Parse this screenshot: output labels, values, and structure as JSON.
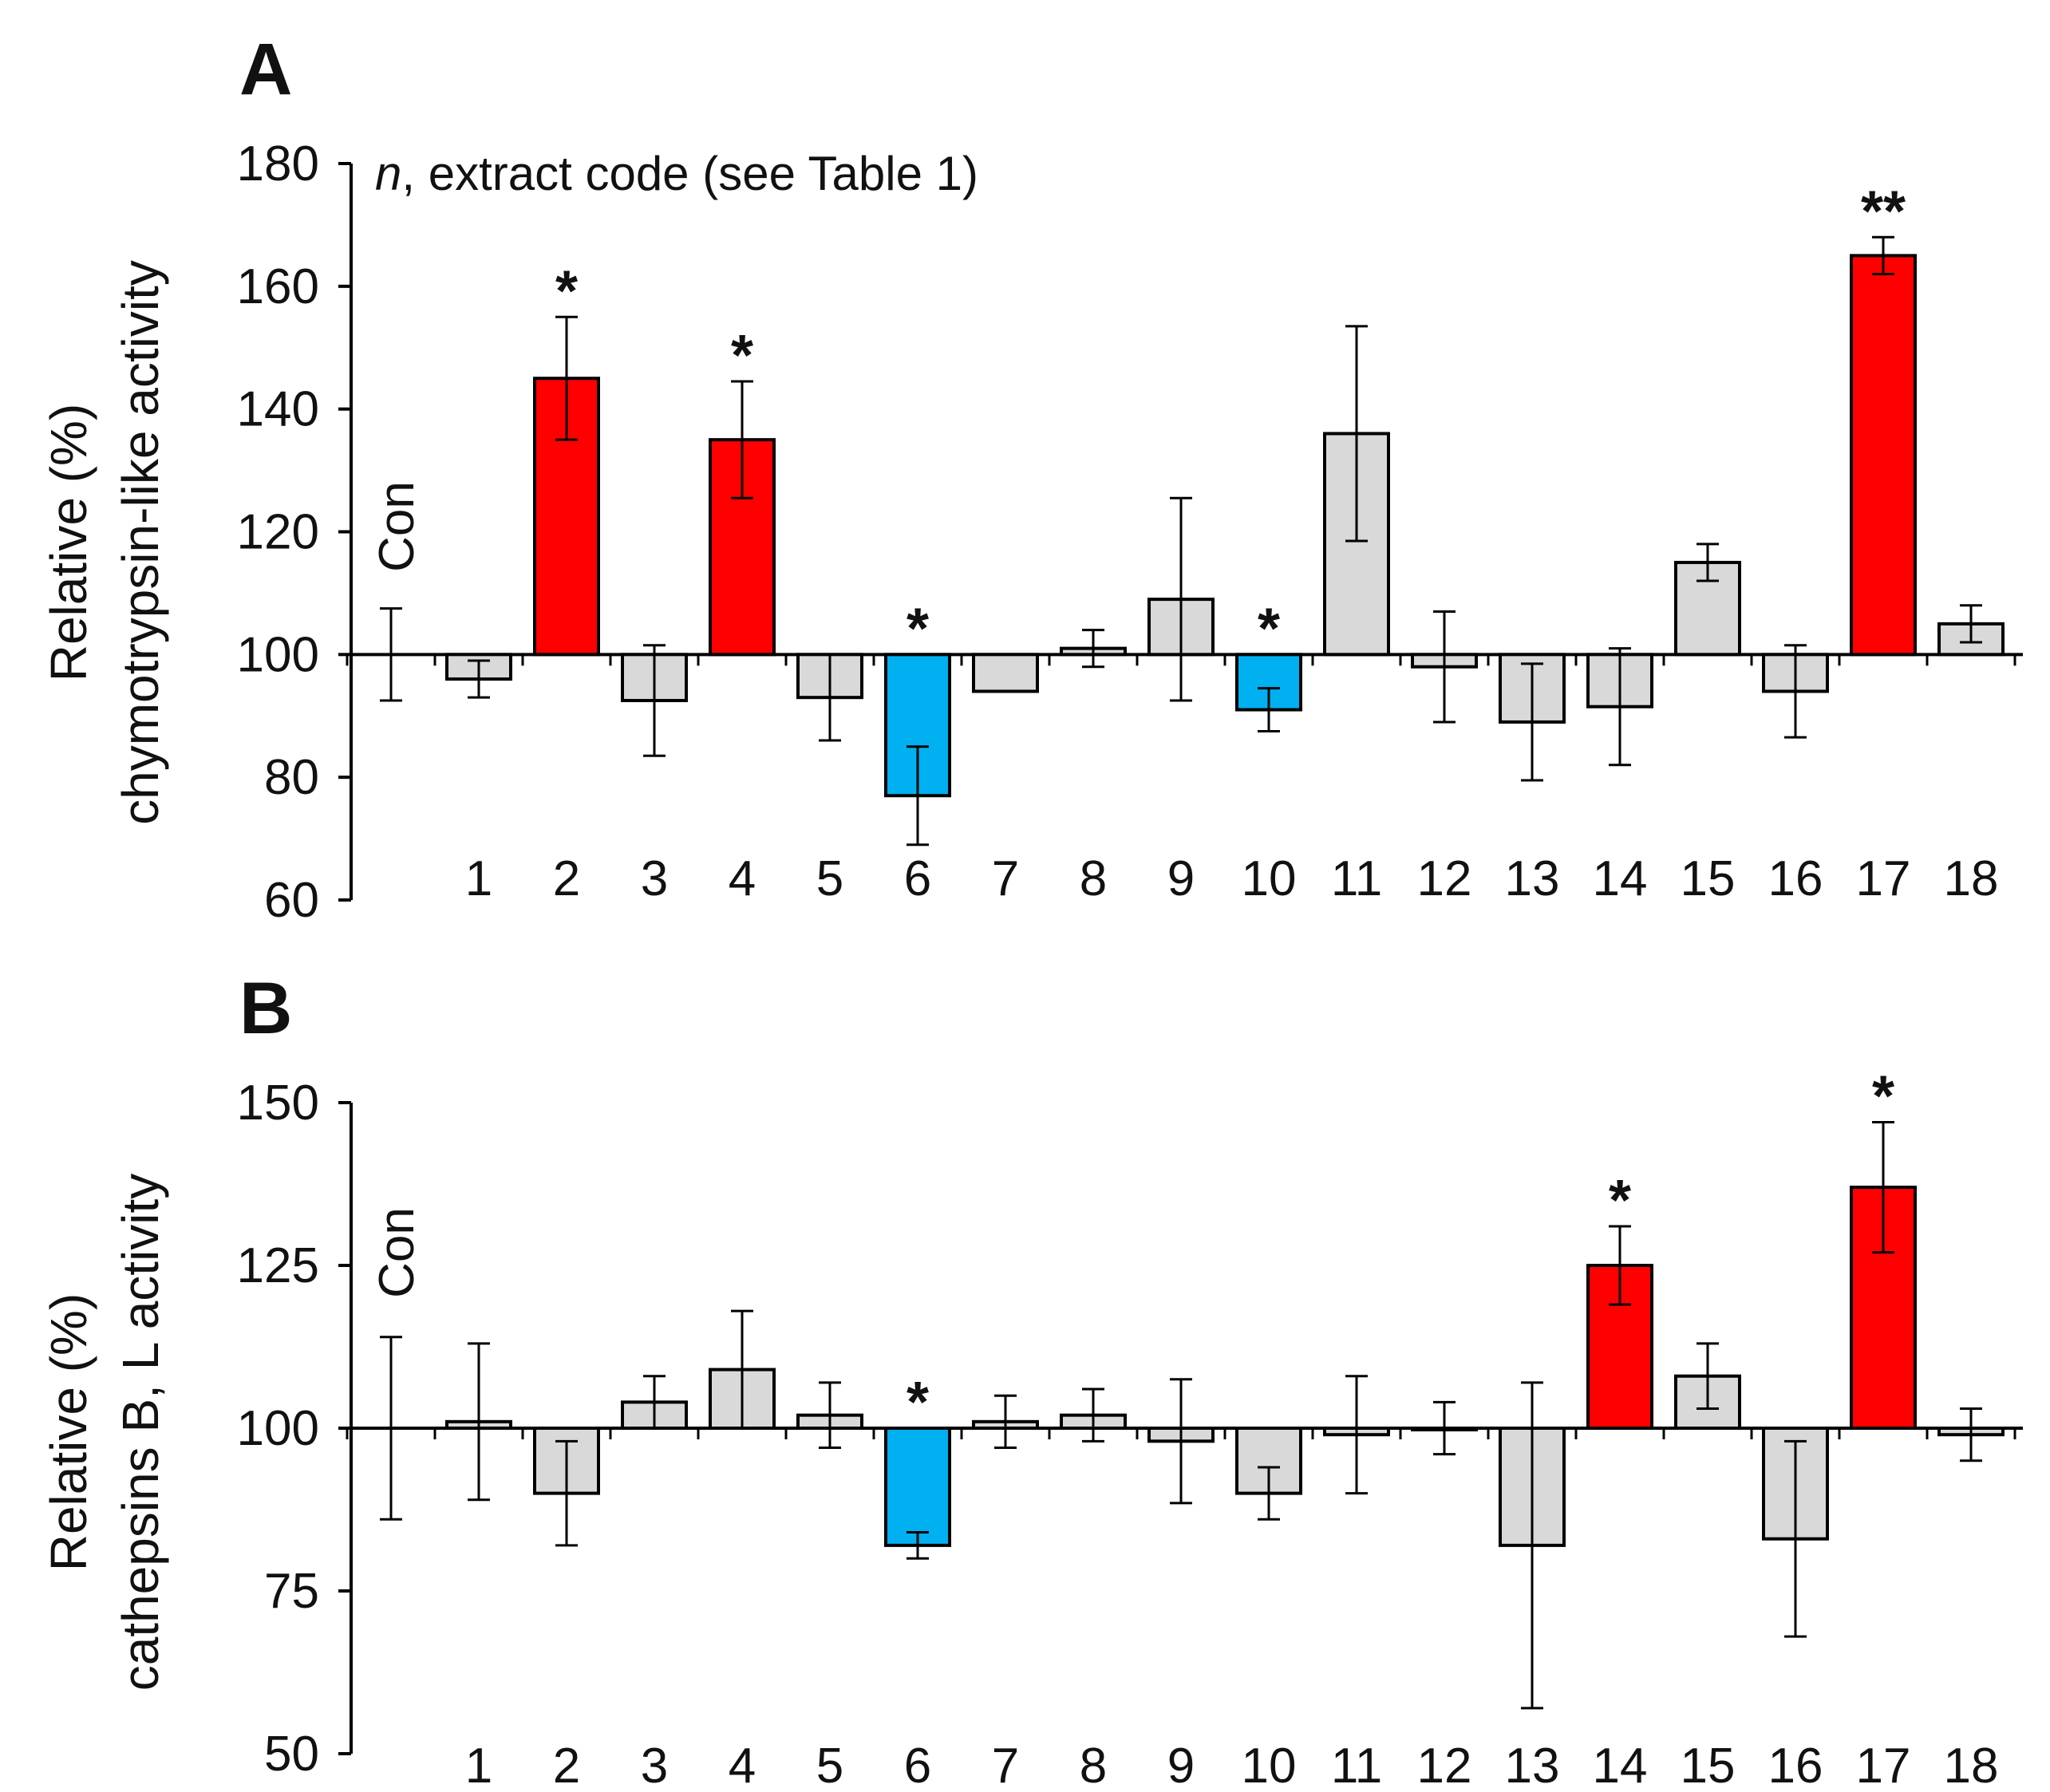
{
  "figure": {
    "panels": [
      {
        "letter": "A",
        "ylabel_line1": "Relative (%)",
        "ylabel_line2": "chymotrypsin-like activity",
        "note_italic": "n",
        "note_rest": ", extract code (see Table 1)",
        "control_label": "Con"
      },
      {
        "letter": "B",
        "ylabel_line1": "Relative (%)",
        "ylabel_line2": "cathepsins B, L activity",
        "control_label": "Con"
      }
    ]
  },
  "colors": {
    "neutral": "#d9d9d9",
    "increase": "#ff0000",
    "decrease": "#00b0f0",
    "outline": "#000000"
  },
  "chart_data": [
    {
      "type": "bar",
      "panel": "A",
      "ylabel": "Relative (%) chymotrypsin-like activity",
      "ylim": [
        60,
        180
      ],
      "yticks": [
        60,
        80,
        100,
        120,
        140,
        160,
        180
      ],
      "baseline": 100,
      "control": {
        "label": "Con",
        "value": 100,
        "error": 7.5
      },
      "categories": [
        "1",
        "2",
        "3",
        "4",
        "5",
        "6",
        "7",
        "8",
        "9",
        "10",
        "11",
        "12",
        "13",
        "14",
        "15",
        "16",
        "17",
        "18"
      ],
      "values": [
        96,
        145,
        92.5,
        135,
        93,
        77,
        94,
        101,
        109,
        91,
        136,
        98,
        89,
        91.5,
        115,
        94,
        165,
        105
      ],
      "errors": [
        3,
        10,
        9,
        9.5,
        7,
        8,
        0,
        3,
        16.5,
        3.5,
        17.5,
        9,
        9.5,
        9.5,
        3,
        7.5,
        3,
        3
      ],
      "colors": [
        "neutral",
        "increase",
        "neutral",
        "increase",
        "neutral",
        "decrease",
        "neutral",
        "neutral",
        "neutral",
        "decrease",
        "neutral",
        "neutral",
        "neutral",
        "neutral",
        "neutral",
        "neutral",
        "increase",
        "neutral"
      ],
      "significance": [
        "",
        "*",
        "",
        "*",
        "",
        "*",
        "",
        "",
        "",
        "*",
        "",
        "",
        "",
        "",
        "",
        "",
        "**",
        ""
      ]
    },
    {
      "type": "bar",
      "panel": "B",
      "ylabel": "Relative (%) cathepsins B, L activity",
      "ylim": [
        50,
        150
      ],
      "yticks": [
        50,
        75,
        100,
        125,
        150
      ],
      "baseline": 100,
      "control": {
        "label": "Con",
        "value": 100,
        "error": 14
      },
      "categories": [
        "1",
        "2",
        "3",
        "4",
        "5",
        "6",
        "7",
        "8",
        "9",
        "10",
        "11",
        "12",
        "13",
        "14",
        "15",
        "16",
        "17",
        "18"
      ],
      "values": [
        101,
        90,
        104,
        109,
        102,
        82,
        101,
        102,
        98,
        90,
        99,
        100,
        82,
        125,
        108,
        83,
        137,
        99
      ],
      "errors": [
        12,
        8,
        4,
        9,
        5,
        2,
        4,
        4,
        9.5,
        4,
        9,
        4,
        25,
        6,
        5,
        15,
        10,
        4
      ],
      "colors": [
        "neutral",
        "neutral",
        "neutral",
        "neutral",
        "neutral",
        "decrease",
        "neutral",
        "neutral",
        "neutral",
        "neutral",
        "neutral",
        "neutral",
        "neutral",
        "increase",
        "neutral",
        "neutral",
        "increase",
        "neutral"
      ],
      "significance": [
        "",
        "",
        "",
        "",
        "",
        "*",
        "",
        "",
        "",
        "",
        "",
        "",
        "",
        "*",
        "",
        "",
        "*",
        ""
      ]
    }
  ]
}
